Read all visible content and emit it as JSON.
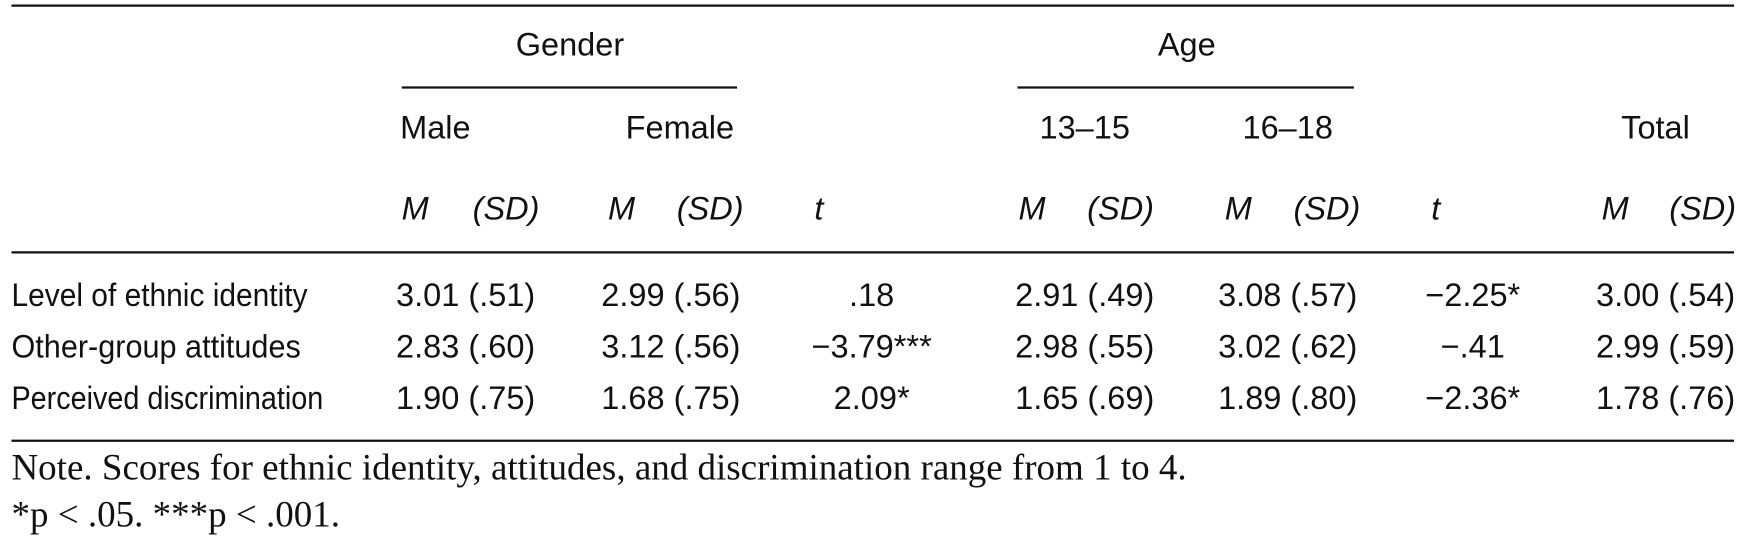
{
  "table": {
    "groups": [
      "Gender",
      "Age"
    ],
    "subgroups": [
      "Male",
      "Female",
      "13–15",
      "16–18",
      "Total"
    ],
    "stat_headers": [
      "M",
      "(SD)",
      "M",
      "(SD)",
      "t",
      "M",
      "(SD)",
      "M",
      "(SD)",
      "t",
      "M",
      "(SD)"
    ],
    "rows": [
      [
        "Level of ethnic identity",
        "3.01 (.51)",
        "2.99 (.56)",
        ".18",
        "2.91 (.49)",
        "3.08 (.57)",
        "−2.25*",
        "3.00 (.54)"
      ],
      [
        "Other-group attitudes",
        "2.83 (.60)",
        "3.12 (.56)",
        "−3.79***",
        "2.98 (.55)",
        "3.02 (.62)",
        "−.41",
        "2.99 (.59)"
      ],
      [
        "Perceived discrimination",
        "1.90 (.75)",
        "1.68 (.75)",
        "2.09*",
        "1.65 (.69)",
        "1.89 (.80)",
        "−2.36*",
        "1.78 (.76)"
      ]
    ]
  },
  "note": [
    "Note. Scores for ethnic identity, attitudes, and discrimination range from 1 to 4.",
    "*p < .05. ***p < .001."
  ]
}
